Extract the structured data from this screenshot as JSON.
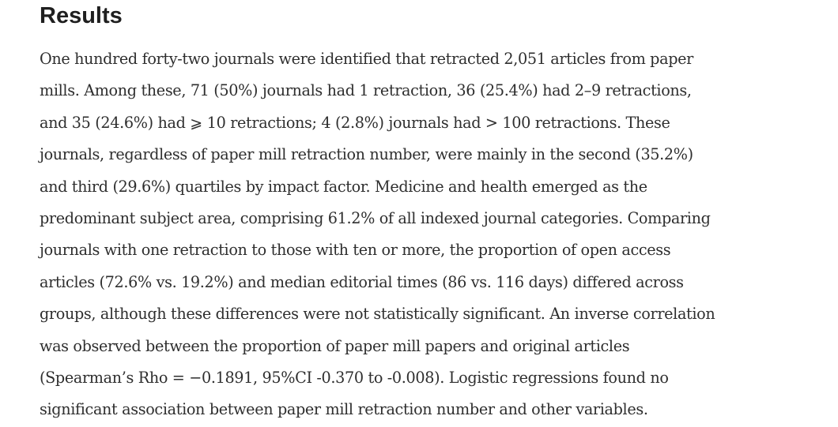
{
  "section": {
    "title": "Results",
    "lines": [
      "One hundred forty-two journals were identified that retracted 2,051 articles from paper",
      "mills. Among these, 71 (50%) journals had 1 retraction, 36 (25.4%) had 2–9 retractions,",
      "and 35 (24.6%) had ⩾ 10 retractions; 4 (2.8%) journals had > 100 retractions. These",
      "journals, regardless of paper mill retraction number, were mainly in the second (35.2%)",
      "and third (29.6%) quartiles by impact factor. Medicine and health emerged as the",
      "predominant subject area, comprising 61.2% of all indexed journal categories. Comparing",
      "journals with one retraction to those with ten or more, the proportion of open access",
      "articles (72.6% vs. 19.2%) and median editorial times (86 vs. 116 days) differed across",
      "groups, although these differences were not statistically significant. An inverse correlation",
      "was observed between the proportion of paper mill papers and original articles",
      "(Spearman’s Rho = −0.1891, 95%CI -0.370 to -0.008). Logistic regressions found no",
      "significant association between paper mill retraction number and other variables."
    ]
  }
}
